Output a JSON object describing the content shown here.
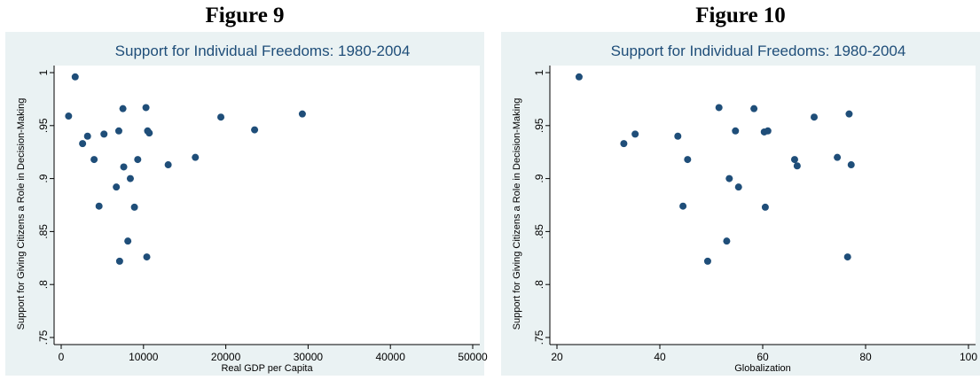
{
  "figures": [
    {
      "heading": "Figure 9"
    },
    {
      "heading": "Figure 10"
    }
  ],
  "chart_data": [
    {
      "type": "scatter",
      "title": "Support for Individual Freedoms: 1980-2004",
      "xlabel": "Real GDP per Capita",
      "ylabel": "Support for Giving Citizens a Role in Decision-Making",
      "xlim": [
        0,
        50000
      ],
      "ylim": [
        0.75,
        1.0
      ],
      "xticks": [
        "0",
        "10000",
        "20000",
        "30000",
        "40000",
        "50000"
      ],
      "yticks": [
        ".75",
        ".8",
        ".85",
        ".9",
        ".95",
        "1"
      ],
      "grid": false,
      "marker_color": "#1f4e79",
      "points": [
        {
          "x": 900,
          "y": 0.959
        },
        {
          "x": 1700,
          "y": 0.996
        },
        {
          "x": 2600,
          "y": 0.933
        },
        {
          "x": 3200,
          "y": 0.94
        },
        {
          "x": 4000,
          "y": 0.918
        },
        {
          "x": 4600,
          "y": 0.874
        },
        {
          "x": 5200,
          "y": 0.942
        },
        {
          "x": 6700,
          "y": 0.892
        },
        {
          "x": 7000,
          "y": 0.945
        },
        {
          "x": 7100,
          "y": 0.822
        },
        {
          "x": 7500,
          "y": 0.966
        },
        {
          "x": 7600,
          "y": 0.911
        },
        {
          "x": 8100,
          "y": 0.841
        },
        {
          "x": 8400,
          "y": 0.9
        },
        {
          "x": 8900,
          "y": 0.873
        },
        {
          "x": 9300,
          "y": 0.918
        },
        {
          "x": 10300,
          "y": 0.967
        },
        {
          "x": 10400,
          "y": 0.826
        },
        {
          "x": 10500,
          "y": 0.945
        },
        {
          "x": 10700,
          "y": 0.943
        },
        {
          "x": 13000,
          "y": 0.913
        },
        {
          "x": 16300,
          "y": 0.92
        },
        {
          "x": 19400,
          "y": 0.958
        },
        {
          "x": 23500,
          "y": 0.946
        },
        {
          "x": 29300,
          "y": 0.961
        }
      ]
    },
    {
      "type": "scatter",
      "title": "Support for Individual Freedoms: 1980-2004",
      "xlabel": "Globalization",
      "ylabel": "Support for Giving Citizens a Role in Decision-Making",
      "xlim": [
        20,
        100
      ],
      "ylim": [
        0.75,
        1.0
      ],
      "xticks": [
        "20",
        "40",
        "60",
        "80",
        "100"
      ],
      "yticks": [
        ".75",
        ".8",
        ".85",
        ".9",
        ".95",
        "1"
      ],
      "grid": false,
      "marker_color": "#1f4e79",
      "points": [
        {
          "x": 24.3,
          "y": 0.996
        },
        {
          "x": 33.0,
          "y": 0.933
        },
        {
          "x": 35.2,
          "y": 0.942
        },
        {
          "x": 43.5,
          "y": 0.94
        },
        {
          "x": 44.5,
          "y": 0.874
        },
        {
          "x": 45.4,
          "y": 0.918
        },
        {
          "x": 49.3,
          "y": 0.822
        },
        {
          "x": 51.5,
          "y": 0.967
        },
        {
          "x": 53.0,
          "y": 0.841
        },
        {
          "x": 53.5,
          "y": 0.9
        },
        {
          "x": 54.7,
          "y": 0.945
        },
        {
          "x": 55.3,
          "y": 0.892
        },
        {
          "x": 58.3,
          "y": 0.966
        },
        {
          "x": 60.3,
          "y": 0.944
        },
        {
          "x": 60.5,
          "y": 0.873
        },
        {
          "x": 61.0,
          "y": 0.945
        },
        {
          "x": 66.2,
          "y": 0.918
        },
        {
          "x": 66.7,
          "y": 0.912
        },
        {
          "x": 70.0,
          "y": 0.958
        },
        {
          "x": 74.5,
          "y": 0.92
        },
        {
          "x": 76.5,
          "y": 0.826
        },
        {
          "x": 76.8,
          "y": 0.961
        },
        {
          "x": 77.2,
          "y": 0.913
        }
      ]
    }
  ]
}
